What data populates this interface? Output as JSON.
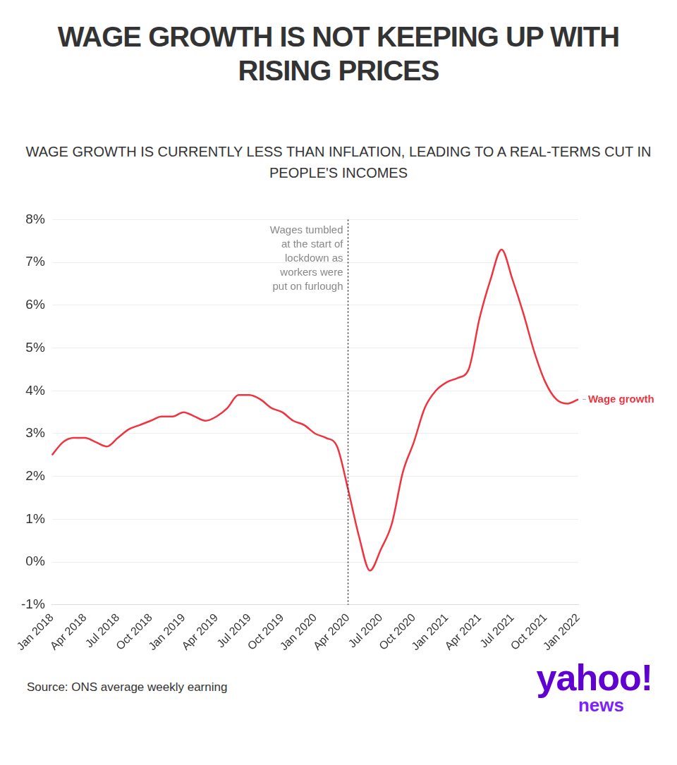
{
  "chart_data": {
    "type": "line",
    "title": "WAGE GROWTH IS NOT KEEPING UP WITH RISING PRICES",
    "subtitle": "WAGE GROWTH IS CURRENTLY LESS THAN INFLATION, LEADING TO A REAL-TERMS CUT IN PEOPLE'S INCOMES",
    "source": "Source: ONS average weekly earning",
    "logo": "yahoo!",
    "logo_sub": "news",
    "annotation": {
      "x": "Apr 2020",
      "text": [
        "Wages tumbled",
        "at the start of",
        "lockdown as",
        "workers were",
        "put on furlough"
      ]
    },
    "categories": [
      "Jan 2018",
      null,
      null,
      "Apr 2018",
      null,
      null,
      "Jul 2018",
      null,
      null,
      "Oct 2018",
      null,
      null,
      "Jan 2019",
      null,
      null,
      "Apr 2019",
      null,
      null,
      "Jul 2019",
      null,
      null,
      "Oct 2019",
      null,
      null,
      "Jan 2020",
      null,
      null,
      "Apr 2020",
      null,
      null,
      "Jul 2020",
      null,
      null,
      "Oct 2020",
      null,
      null,
      "Jan 2021",
      null,
      null,
      "Apr 2021",
      null,
      null,
      "Jul 2021",
      null,
      null,
      "Oct 2021",
      null,
      null,
      "Jan 2022"
    ],
    "series": [
      {
        "name": "Wage growth",
        "color": "#f0333f",
        "values": [
          2.5,
          2.8,
          2.9,
          2.9,
          2.8,
          2.7,
          2.9,
          3.1,
          3.2,
          3.3,
          3.4,
          3.4,
          3.5,
          3.4,
          3.3,
          3.4,
          3.6,
          3.9,
          3.9,
          3.8,
          3.6,
          3.5,
          3.3,
          3.2,
          3.0,
          2.9,
          2.7,
          1.7,
          0.6,
          -0.2,
          0.3,
          0.9,
          2.1,
          2.8,
          3.6,
          4.0,
          4.2,
          4.3,
          4.5,
          5.7,
          6.6,
          7.3,
          6.6,
          5.8,
          4.9,
          4.2,
          3.8,
          3.7,
          3.8
        ]
      }
    ],
    "ylim": [
      -1,
      8
    ],
    "yticks": [
      {
        "value": -1,
        "label": "-1%"
      },
      {
        "value": 0,
        "label": "0%"
      },
      {
        "value": 1,
        "label": "1%"
      },
      {
        "value": 2,
        "label": "2%"
      },
      {
        "value": 3,
        "label": "3%"
      },
      {
        "value": 4,
        "label": "4%"
      },
      {
        "value": 5,
        "label": "5%"
      },
      {
        "value": 6,
        "label": "6%"
      },
      {
        "value": 7,
        "label": "7%"
      },
      {
        "value": 8,
        "label": "8%"
      }
    ],
    "grid": true
  }
}
